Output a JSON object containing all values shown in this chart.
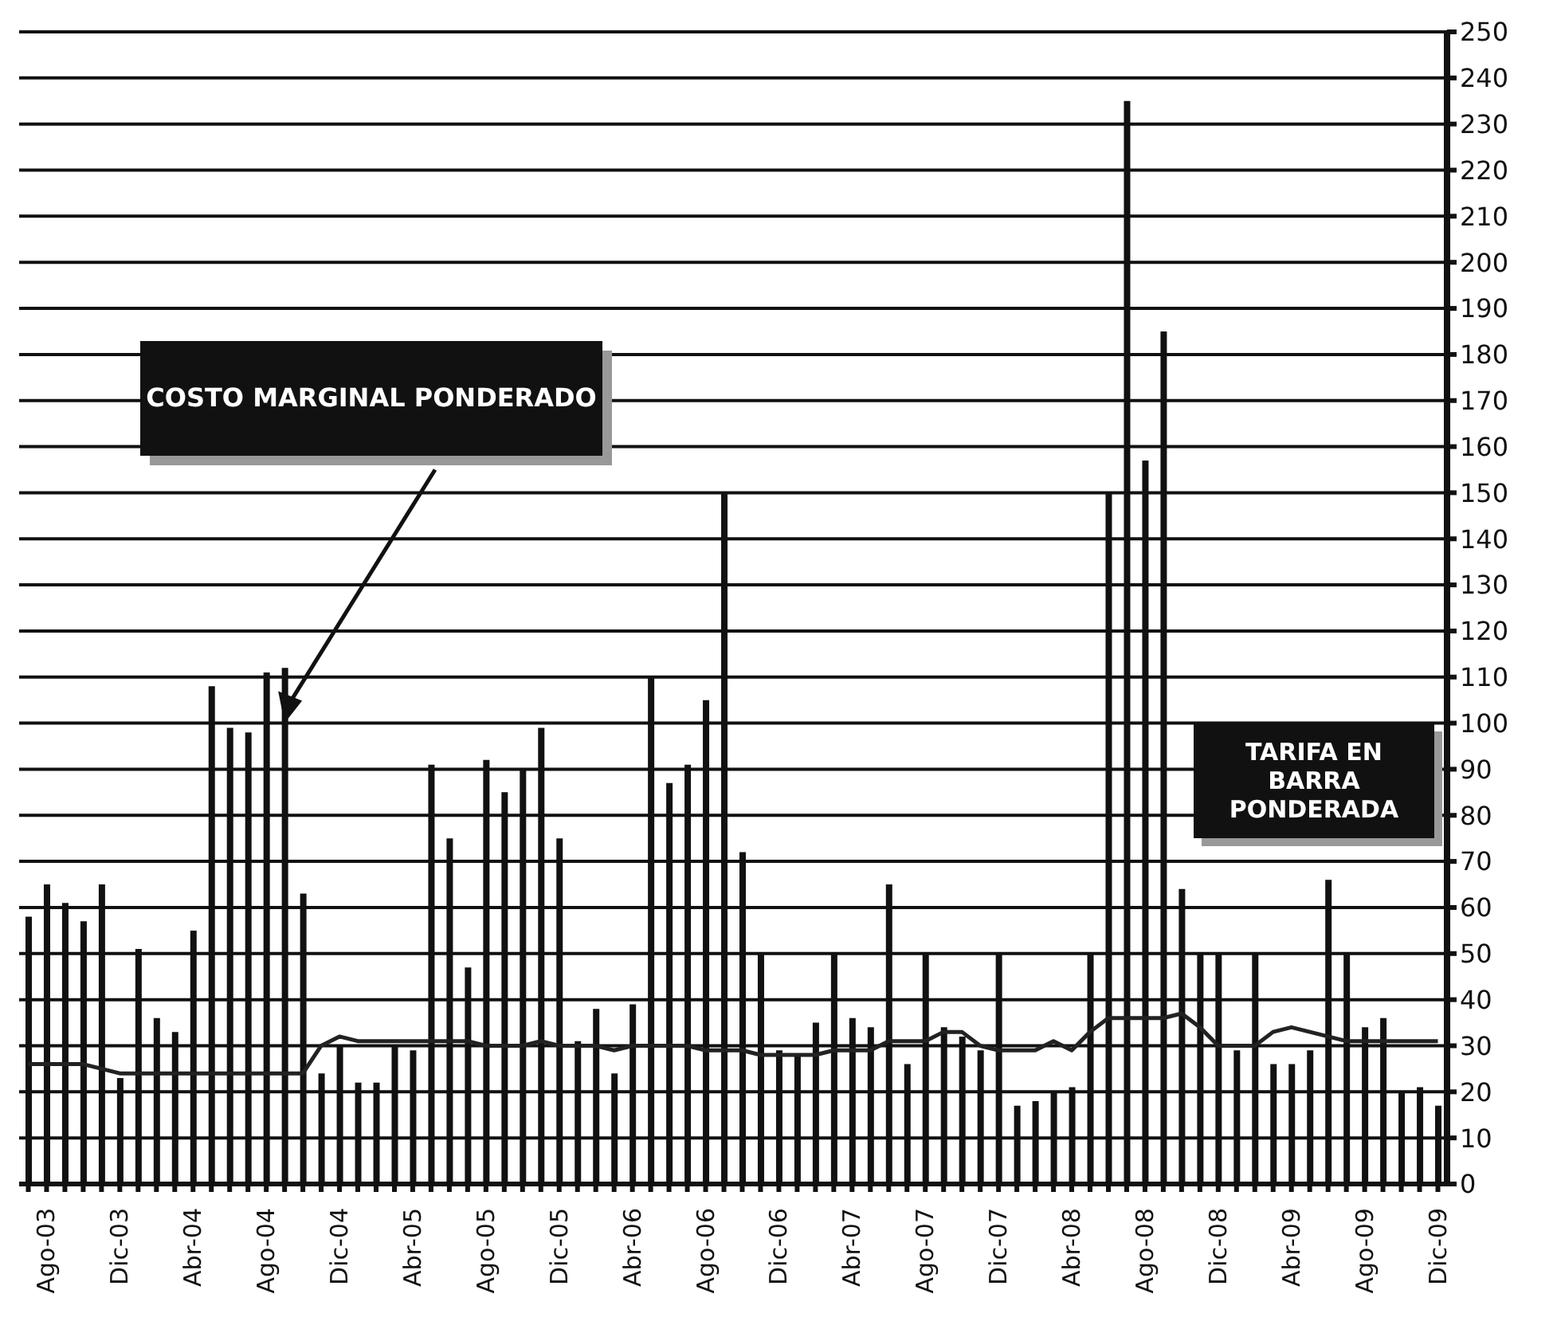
{
  "chart_data": {
    "type": "bar",
    "categories": [
      null,
      "Ago-03",
      null,
      null,
      null,
      "Dic-03",
      null,
      null,
      null,
      "Abr-04",
      null,
      null,
      null,
      "Ago-04",
      null,
      null,
      null,
      "Dic-04",
      null,
      null,
      null,
      "Abr-05",
      null,
      null,
      null,
      "Ago-05",
      null,
      null,
      null,
      "Dic-05",
      null,
      null,
      null,
      "Abr-06",
      null,
      null,
      null,
      "Ago-06",
      null,
      null,
      null,
      "Dic-06",
      null,
      null,
      null,
      "Abr-07",
      null,
      null,
      null,
      "Ago-07",
      null,
      null,
      null,
      "Dic-07",
      null,
      null,
      null,
      "Abr-08",
      null,
      null,
      null,
      "Ago-08",
      null,
      null,
      null,
      "Dic-08",
      null,
      null,
      null,
      "Abr-09",
      null,
      null,
      null,
      "Ago-09",
      null,
      null,
      null,
      "Dic-09"
    ],
    "series": [
      {
        "color": "#111111",
        "values": [
          58,
          65,
          61,
          57,
          65,
          23,
          51,
          36,
          33,
          55,
          108,
          99,
          98,
          111,
          112,
          63,
          24,
          30,
          22,
          22,
          30,
          29,
          91,
          75,
          47,
          92,
          85,
          90,
          99,
          75,
          31,
          38,
          24,
          39,
          110,
          87,
          91,
          105,
          150,
          72,
          50,
          29,
          28,
          35,
          50,
          36,
          34,
          65,
          26,
          50,
          34,
          32,
          29,
          50,
          17,
          18,
          20,
          21,
          50,
          150,
          235,
          157,
          185,
          64,
          50,
          50,
          29,
          50,
          26,
          26,
          29,
          66,
          50,
          34,
          36,
          20,
          21,
          17
        ]
      },
      {
        "type": "line",
        "color": "#222222",
        "values": [
          26,
          26,
          26,
          26,
          25,
          24,
          24,
          24,
          24,
          24,
          24,
          24,
          24,
          24,
          24,
          24,
          30,
          32,
          31,
          31,
          31,
          31,
          31,
          31,
          31,
          30,
          30,
          30,
          31,
          30,
          30,
          30,
          29,
          30,
          30,
          30,
          30,
          29,
          29,
          29,
          28,
          28,
          28,
          28,
          29,
          29,
          29,
          31,
          31,
          31,
          33,
          33,
          30,
          29,
          29,
          29,
          31,
          29,
          33,
          36,
          36,
          36,
          36,
          37,
          34,
          30,
          30,
          30,
          33,
          34,
          33,
          32,
          31,
          31,
          31,
          31,
          31,
          31
        ]
      }
    ],
    "annotations": [
      "COSTO MARGINAL PONDERADO",
      "TARIFA EN BARRA PONDERADA"
    ],
    "ylim": [
      0,
      250
    ],
    "yticks": [
      0,
      10,
      20,
      30,
      40,
      50,
      60,
      70,
      80,
      90,
      100,
      110,
      120,
      130,
      140,
      150,
      160,
      170,
      180,
      190,
      200,
      210,
      220,
      230,
      240,
      250
    ],
    "grid": "y",
    "legend": false
  }
}
